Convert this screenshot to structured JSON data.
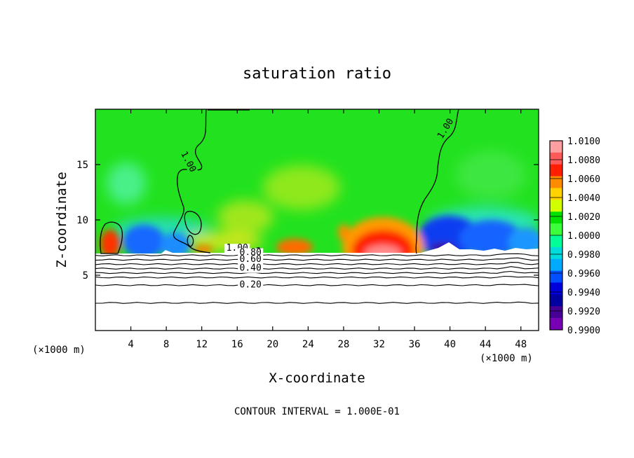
{
  "chart_data": {
    "type": "heatmap",
    "title": "saturation ratio",
    "xlabel": "X-coordinate",
    "ylabel": "Z-coordinate",
    "x_unit_left": "(×1000 m)",
    "x_unit_right": "(×1000 m)",
    "footer": "CONTOUR INTERVAL = 1.000E-01",
    "xlim": [
      0,
      50
    ],
    "ylim": [
      0,
      20
    ],
    "x_ticks": [
      4,
      8,
      12,
      16,
      20,
      24,
      28,
      32,
      36,
      40,
      44,
      48
    ],
    "y_ticks": [
      5,
      10,
      15
    ],
    "surface_height": 7,
    "colorbar": {
      "labels": [
        "1.0100",
        "1.0080",
        "1.0060",
        "1.0040",
        "1.0020",
        "1.0000",
        "0.9980",
        "0.9960",
        "0.9940",
        "0.9920",
        "0.9900"
      ],
      "colors": [
        "#ff9f9f",
        "#ff5a5a",
        "#ff1e00",
        "#ff8c00",
        "#ffd200",
        "#d2ff00",
        "#00e100",
        "#3cff3c",
        "#00ff96",
        "#00dcdc",
        "#00aaff",
        "#0050ff",
        "#0000dc",
        "#0000a0",
        "#460096",
        "#7800b4"
      ]
    },
    "contour_labels": [
      {
        "text": "1.00",
        "x": 10.5,
        "y": 15.0
      },
      {
        "text": "1.00",
        "x": 39.5,
        "y": 18.0
      },
      {
        "text": "1.00",
        "x": 16.0,
        "y": 7.2
      },
      {
        "text": "0.80",
        "x": 17.5,
        "y": 6.8
      },
      {
        "text": "0.60",
        "x": 17.5,
        "y": 6.2
      },
      {
        "text": "0.40",
        "x": 17.5,
        "y": 5.4
      },
      {
        "text": "0.20",
        "x": 17.5,
        "y": 3.9
      }
    ],
    "contours_below": [
      {
        "level": "0.90",
        "y": 6.8
      },
      {
        "level": "0.80",
        "y": 6.4
      },
      {
        "level": "0.70",
        "y": 6.0
      },
      {
        "level": "0.60",
        "y": 5.6
      },
      {
        "level": "0.50",
        "y": 5.2
      },
      {
        "level": "0.40",
        "y": 4.8
      },
      {
        "level": "0.30",
        "y": 4.1
      },
      {
        "level": "0.20",
        "y": 2.5
      }
    ]
  }
}
